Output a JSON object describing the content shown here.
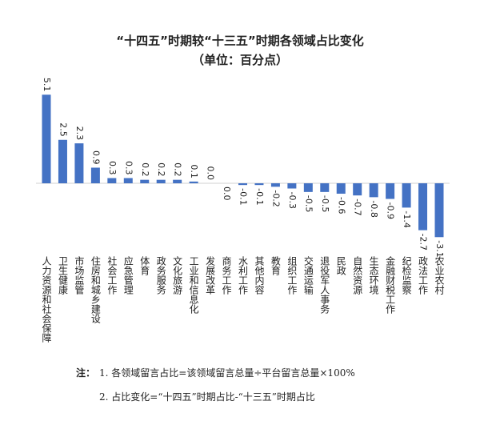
{
  "chart_data": {
    "type": "bar",
    "title": "“十四五”时期较“十三五”时期各领域占比变化",
    "subtitle": "（单位：百分点）",
    "categories": [
      "人力资源和社会保障",
      "卫生健康",
      "市场监管",
      "住房和城乡建设",
      "社会工作",
      "应急管理",
      "体育",
      "政务服务",
      "文化旅游",
      "工业和信息化",
      "发展改革",
      "商务工作",
      "水利工作",
      "其他内容",
      "教育",
      "组织工作",
      "交通运输",
      "退役军人事务",
      "民政",
      "自然资源",
      "生态环境",
      "金融财税工作",
      "纪检监察",
      "政法工作",
      "农业农村"
    ],
    "values": [
      5.1,
      2.5,
      2.3,
      0.9,
      0.3,
      0.3,
      0.2,
      0.2,
      0.2,
      0.1,
      0.0,
      0.0,
      -0.1,
      -0.1,
      -0.2,
      -0.3,
      -0.5,
      -0.5,
      -0.6,
      -0.7,
      -0.8,
      -0.9,
      -1.4,
      -2.7,
      -3.1
    ],
    "value_labels": [
      "5.1",
      "2.5",
      "2.3",
      "0.9",
      "0.3",
      "0.3",
      "0.2",
      "0.2",
      "0.2",
      "0.1",
      "0.0",
      "0.0",
      "-0.1",
      "-0.1",
      "-0.2",
      "-0.3",
      "-0.5",
      "-0.5",
      "-0.6",
      "-0.7",
      "-0.8",
      "-0.9",
      "-1.4",
      "-2.7",
      "-3.1"
    ],
    "color": "#4472c4",
    "note_label": "注：",
    "notes": [
      "1. 各领域留言占比=该领域留言总量÷平台留言总量×100%",
      "2. 占比变化=“十四五”时期占比-“十三五”时期占比"
    ]
  }
}
